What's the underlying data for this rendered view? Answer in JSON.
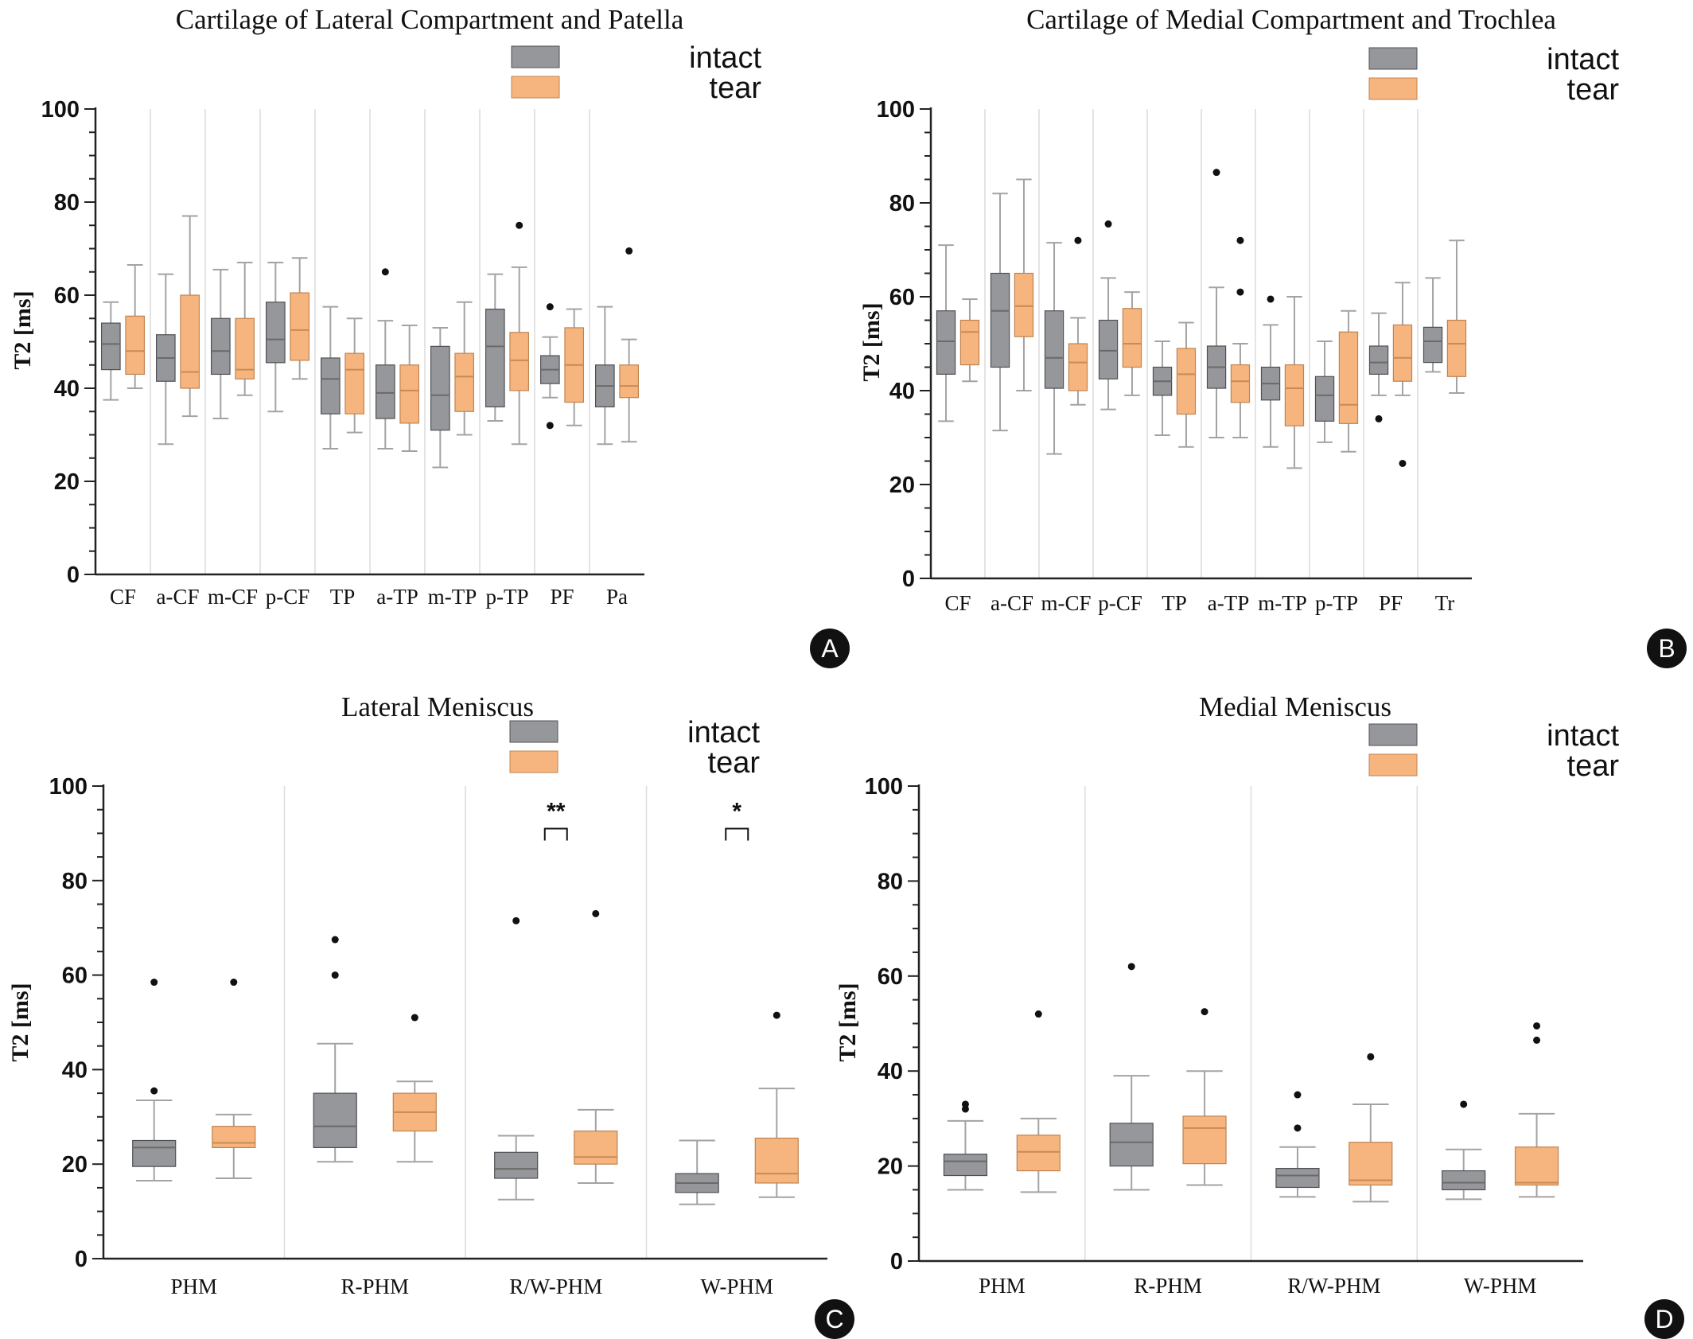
{
  "colors": {
    "intact_fill": "#96979b",
    "intact_stroke": "#4f5055",
    "tear_fill": "#f6b57e",
    "tear_stroke": "#c0834f",
    "whisker": "#a3a3a3",
    "median_intact": "#6a6a6a",
    "median_tear": "#c98a55",
    "axis": "#222222",
    "divider": "#dcdcdc",
    "badge_fill": "#111111"
  },
  "chart_data": [
    {
      "panel": "A",
      "type": "box",
      "title": "Cartilage of Lateral Compartment and Patella",
      "ylabel": "T2 [ms]",
      "ylim": [
        0,
        100
      ],
      "yticks": [
        "0",
        "20",
        "40",
        "60",
        "80",
        "100"
      ],
      "legend": {
        "position": "top-right",
        "entries": [
          "intact",
          "tear"
        ]
      },
      "categories": [
        "CF",
        "a-CF",
        "m-CF",
        "p-CF",
        "TP",
        "a-TP",
        "m-TP",
        "p-TP",
        "PF",
        "Pa"
      ],
      "series": [
        {
          "name": "intact",
          "boxes": [
            {
              "min": 37.5,
              "q1": 44,
              "median": 49.5,
              "q3": 54,
              "max": 58.5,
              "outliers": []
            },
            {
              "min": 28,
              "q1": 41.5,
              "median": 46.5,
              "q3": 51.5,
              "max": 64.5,
              "outliers": []
            },
            {
              "min": 33.5,
              "q1": 43,
              "median": 48,
              "q3": 55,
              "max": 65.5,
              "outliers": []
            },
            {
              "min": 35,
              "q1": 45.5,
              "median": 50.5,
              "q3": 58.5,
              "max": 67,
              "outliers": []
            },
            {
              "min": 27,
              "q1": 34.5,
              "median": 42,
              "q3": 46.5,
              "max": 57.5,
              "outliers": []
            },
            {
              "min": 27,
              "q1": 33.5,
              "median": 39,
              "q3": 45,
              "max": 54.5,
              "outliers": [
                65
              ]
            },
            {
              "min": 23,
              "q1": 31,
              "median": 38.5,
              "q3": 49,
              "max": 53,
              "outliers": []
            },
            {
              "min": 33,
              "q1": 36,
              "median": 49,
              "q3": 57,
              "max": 64.5,
              "outliers": []
            },
            {
              "min": 38,
              "q1": 41,
              "median": 44,
              "q3": 47,
              "max": 51,
              "outliers": [
                57.5,
                32
              ]
            },
            {
              "min": 28,
              "q1": 36,
              "median": 40.5,
              "q3": 45,
              "max": 57.5,
              "outliers": []
            }
          ]
        },
        {
          "name": "tear",
          "boxes": [
            {
              "min": 40,
              "q1": 43,
              "median": 48,
              "q3": 55.5,
              "max": 66.5,
              "outliers": []
            },
            {
              "min": 34,
              "q1": 40,
              "median": 43.5,
              "q3": 60,
              "max": 77,
              "outliers": []
            },
            {
              "min": 38.5,
              "q1": 42,
              "median": 44,
              "q3": 55,
              "max": 67,
              "outliers": []
            },
            {
              "min": 42,
              "q1": 46,
              "median": 52.5,
              "q3": 60.5,
              "max": 68,
              "outliers": []
            },
            {
              "min": 30.5,
              "q1": 34.5,
              "median": 44,
              "q3": 47.5,
              "max": 55,
              "outliers": []
            },
            {
              "min": 26.5,
              "q1": 32.5,
              "median": 39.5,
              "q3": 45,
              "max": 53.5,
              "outliers": []
            },
            {
              "min": 30,
              "q1": 35,
              "median": 42.5,
              "q3": 47.5,
              "max": 58.5,
              "outliers": []
            },
            {
              "min": 28,
              "q1": 39.5,
              "median": 46,
              "q3": 52,
              "max": 66,
              "outliers": [
                75
              ]
            },
            {
              "min": 32,
              "q1": 37,
              "median": 45,
              "q3": 53,
              "max": 57,
              "outliers": []
            },
            {
              "min": 28.5,
              "q1": 38,
              "median": 40.5,
              "q3": 45,
              "max": 50.5,
              "outliers": [
                69.5
              ]
            }
          ]
        }
      ],
      "annotations": [],
      "badge": "A"
    },
    {
      "panel": "B",
      "type": "box",
      "title": "Cartilage of Medial Compartment and Trochlea",
      "ylabel": "T2 [ms]",
      "ylim": [
        0,
        100
      ],
      "yticks": [
        "0",
        "20",
        "40",
        "60",
        "80",
        "100"
      ],
      "legend": {
        "position": "top-right",
        "entries": [
          "intact",
          "tear"
        ]
      },
      "categories": [
        "CF",
        "a-CF",
        "m-CF",
        "p-CF",
        "TP",
        "a-TP",
        "m-TP",
        "p-TP",
        "PF",
        "Tr"
      ],
      "series": [
        {
          "name": "intact",
          "boxes": [
            {
              "min": 33.5,
              "q1": 43.5,
              "median": 50.5,
              "q3": 57,
              "max": 71,
              "outliers": []
            },
            {
              "min": 31.5,
              "q1": 45,
              "median": 57,
              "q3": 65,
              "max": 82,
              "outliers": []
            },
            {
              "min": 26.5,
              "q1": 40.5,
              "median": 47,
              "q3": 57,
              "max": 71.5,
              "outliers": []
            },
            {
              "min": 36,
              "q1": 42.5,
              "median": 48.5,
              "q3": 55,
              "max": 64,
              "outliers": [
                75.5
              ]
            },
            {
              "min": 30.5,
              "q1": 39,
              "median": 42,
              "q3": 45,
              "max": 50.5,
              "outliers": []
            },
            {
              "min": 30,
              "q1": 40.5,
              "median": 45,
              "q3": 49.5,
              "max": 62,
              "outliers": [
                86.5
              ]
            },
            {
              "min": 28,
              "q1": 38,
              "median": 41.5,
              "q3": 45,
              "max": 54,
              "outliers": [
                59.5
              ]
            },
            {
              "min": 29,
              "q1": 33.5,
              "median": 39,
              "q3": 43,
              "max": 50.5,
              "outliers": []
            },
            {
              "min": 39,
              "q1": 43.5,
              "median": 46,
              "q3": 49.5,
              "max": 56.5,
              "outliers": [
                34
              ]
            },
            {
              "min": 44,
              "q1": 46,
              "median": 50.5,
              "q3": 53.5,
              "max": 64,
              "outliers": []
            }
          ]
        },
        {
          "name": "tear",
          "boxes": [
            {
              "min": 42,
              "q1": 45.5,
              "median": 52.5,
              "q3": 55,
              "max": 59.5,
              "outliers": []
            },
            {
              "min": 40,
              "q1": 51.5,
              "median": 58,
              "q3": 65,
              "max": 85,
              "outliers": []
            },
            {
              "min": 37,
              "q1": 40,
              "median": 46,
              "q3": 50,
              "max": 55.5,
              "outliers": [
                72
              ]
            },
            {
              "min": 39,
              "q1": 45,
              "median": 50,
              "q3": 57.5,
              "max": 61,
              "outliers": []
            },
            {
              "min": 28,
              "q1": 35,
              "median": 43.5,
              "q3": 49,
              "max": 54.5,
              "outliers": []
            },
            {
              "min": 30,
              "q1": 37.5,
              "median": 42,
              "q3": 45.5,
              "max": 50,
              "outliers": [
                72,
                61
              ]
            },
            {
              "min": 23.5,
              "q1": 32.5,
              "median": 40.5,
              "q3": 45.5,
              "max": 60,
              "outliers": []
            },
            {
              "min": 27,
              "q1": 33,
              "median": 37,
              "q3": 52.5,
              "max": 57,
              "outliers": []
            },
            {
              "min": 39,
              "q1": 42,
              "median": 47,
              "q3": 54,
              "max": 63,
              "outliers": [
                24.5
              ]
            },
            {
              "min": 39.5,
              "q1": 43,
              "median": 50,
              "q3": 55,
              "max": 72,
              "outliers": []
            }
          ]
        }
      ],
      "annotations": [],
      "badge": "B"
    },
    {
      "panel": "C",
      "type": "box",
      "title": "Lateral Meniscus",
      "ylabel": "T2 [ms]",
      "ylim": [
        0,
        100
      ],
      "yticks": [
        "0",
        "20",
        "40",
        "60",
        "80",
        "100"
      ],
      "legend": {
        "position": "top-right",
        "entries": [
          "intact",
          "tear"
        ]
      },
      "categories": [
        "PHM",
        "R-PHM",
        "R/W-PHM",
        "W-PHM"
      ],
      "series": [
        {
          "name": "intact",
          "boxes": [
            {
              "min": 16.5,
              "q1": 19.5,
              "median": 23.5,
              "q3": 25,
              "max": 33.5,
              "outliers": [
                58.5,
                35.5
              ]
            },
            {
              "min": 20.5,
              "q1": 23.5,
              "median": 28,
              "q3": 35,
              "max": 45.5,
              "outliers": [
                67.5,
                60
              ]
            },
            {
              "min": 12.5,
              "q1": 17,
              "median": 19,
              "q3": 22.5,
              "max": 26,
              "outliers": [
                71.5
              ]
            },
            {
              "min": 11.5,
              "q1": 14,
              "median": 16,
              "q3": 18,
              "max": 25,
              "outliers": []
            }
          ]
        },
        {
          "name": "tear",
          "boxes": [
            {
              "min": 17,
              "q1": 23.5,
              "median": 24.5,
              "q3": 28,
              "max": 30.5,
              "outliers": [
                58.5
              ]
            },
            {
              "min": 20.5,
              "q1": 27,
              "median": 31,
              "q3": 35,
              "max": 37.5,
              "outliers": [
                51
              ]
            },
            {
              "min": 16,
              "q1": 20,
              "median": 21.5,
              "q3": 27,
              "max": 31.5,
              "outliers": [
                73
              ]
            },
            {
              "min": 13,
              "q1": 16,
              "median": 18,
              "q3": 25.5,
              "max": 36,
              "outliers": [
                51.5
              ]
            }
          ]
        }
      ],
      "annotations": [
        {
          "category_index": 2,
          "label": "**",
          "y": 91
        },
        {
          "category_index": 3,
          "label": "*",
          "y": 91
        }
      ],
      "badge": "C"
    },
    {
      "panel": "D",
      "type": "box",
      "title": "Medial Meniscus",
      "ylabel": "T2 [ms]",
      "ylim": [
        0,
        100
      ],
      "yticks": [
        "0",
        "20",
        "40",
        "60",
        "80",
        "100"
      ],
      "legend": {
        "position": "top-right",
        "entries": [
          "intact",
          "tear"
        ]
      },
      "categories": [
        "PHM",
        "R-PHM",
        "R/W-PHM",
        "W-PHM"
      ],
      "series": [
        {
          "name": "intact",
          "boxes": [
            {
              "min": 15,
              "q1": 18,
              "median": 21,
              "q3": 22.5,
              "max": 29.5,
              "outliers": [
                33,
                32
              ]
            },
            {
              "min": 15,
              "q1": 20,
              "median": 25,
              "q3": 29,
              "max": 39,
              "outliers": [
                62
              ]
            },
            {
              "min": 13.5,
              "q1": 15.5,
              "median": 18,
              "q3": 19.5,
              "max": 24,
              "outliers": [
                35,
                28
              ]
            },
            {
              "min": 13,
              "q1": 15,
              "median": 16.5,
              "q3": 19,
              "max": 23.5,
              "outliers": [
                33
              ]
            }
          ]
        },
        {
          "name": "tear",
          "boxes": [
            {
              "min": 14.5,
              "q1": 19,
              "median": 23,
              "q3": 26.5,
              "max": 30,
              "outliers": [
                52
              ]
            },
            {
              "min": 16,
              "q1": 20.5,
              "median": 28,
              "q3": 30.5,
              "max": 40,
              "outliers": [
                52.5
              ]
            },
            {
              "min": 12.5,
              "q1": 16,
              "median": 17,
              "q3": 25,
              "max": 33,
              "outliers": [
                43
              ]
            },
            {
              "min": 13.5,
              "q1": 16,
              "median": 16.5,
              "q3": 24,
              "max": 31,
              "outliers": [
                49.5,
                46.5
              ]
            }
          ]
        }
      ],
      "annotations": [],
      "badge": "D"
    }
  ]
}
